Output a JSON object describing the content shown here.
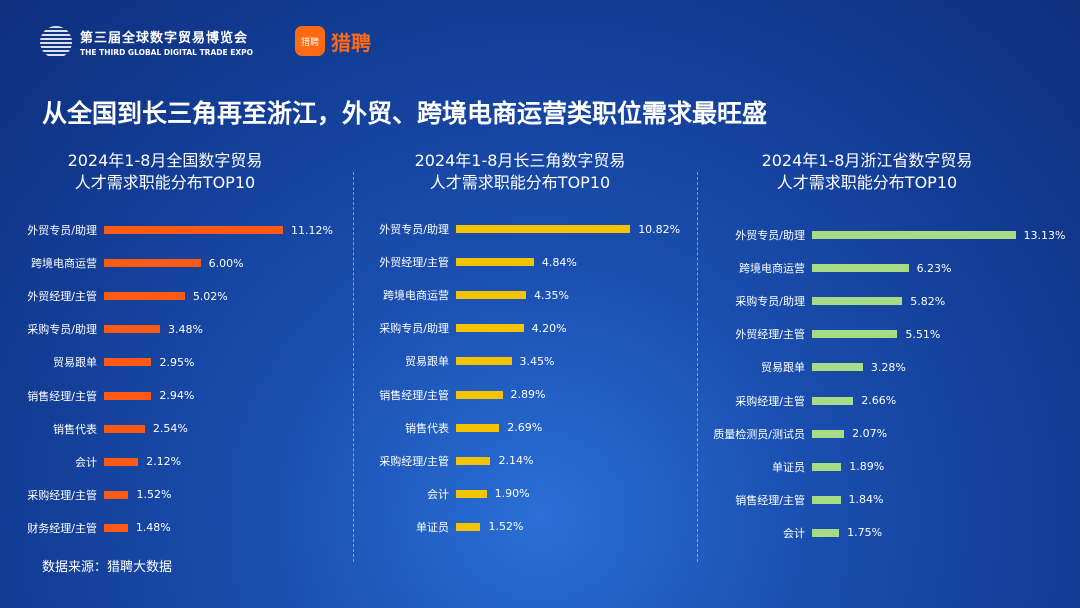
{
  "header": {
    "expo_cn": "第三届全球数字贸易博览会",
    "expo_en": "THE THIRD GLOBAL DIGITAL TRADE EXPO",
    "brand_icon": "猎聘",
    "brand": "猎聘"
  },
  "title": "从全国到长三角再至浙江，外贸、跨境电商运营类职位需求最旺盛",
  "source": "数据来源：猎聘大数据",
  "colors": {
    "national": "#ff5a14",
    "yrd": "#f5c400",
    "zhejiang": "#a6dc86"
  },
  "chart_data": [
    {
      "type": "bar",
      "title": "2024年1-8月全国数字贸易\n人才需求职能分布TOP10",
      "title_l1": "2024年1-8月全国数字贸易",
      "title_l2": "人才需求职能分布TOP10",
      "categories": [
        "外贸专员/助理",
        "跨境电商运营",
        "外贸经理/主管",
        "采购专员/助理",
        "贸易跟单",
        "销售经理/主管",
        "销售代表",
        "会计",
        "采购经理/主管",
        "财务经理/主管"
      ],
      "values": [
        11.12,
        6.0,
        5.02,
        3.48,
        2.95,
        2.94,
        2.54,
        2.12,
        1.52,
        1.48
      ],
      "labels": [
        "11.12%",
        "6.00%",
        "5.02%",
        "3.48%",
        "2.95%",
        "2.94%",
        "2.54%",
        "2.12%",
        "1.52%",
        "1.48%"
      ]
    },
    {
      "type": "bar",
      "title_l1": "2024年1-8月长三角数字贸易",
      "title_l2": "人才需求职能分布TOP10",
      "categories": [
        "外贸专员/助理",
        "外贸经理/主管",
        "跨境电商运营",
        "采购专员/助理",
        "贸易跟单",
        "销售经理/主管",
        "销售代表",
        "采购经理/主管",
        "会计",
        "单证员"
      ],
      "values": [
        10.82,
        4.84,
        4.35,
        4.2,
        3.45,
        2.89,
        2.69,
        2.14,
        1.9,
        1.52
      ],
      "labels": [
        "10.82%",
        "4.84%",
        "4.35%",
        "4.20%",
        "3.45%",
        "2.89%",
        "2.69%",
        "2.14%",
        "1.90%",
        "1.52%"
      ]
    },
    {
      "type": "bar",
      "title_l1": "2024年1-8月浙江省数字贸易",
      "title_l2": "人才需求职能分布TOP10",
      "categories": [
        "外贸专员/助理",
        "跨境电商运营",
        "采购专员/助理",
        "外贸经理/主管",
        "贸易跟单",
        "采购经理/主管",
        "质量检测员/测试员",
        "单证员",
        "销售经理/主管",
        "会计"
      ],
      "values": [
        13.13,
        6.23,
        5.82,
        5.51,
        3.28,
        2.66,
        2.07,
        1.89,
        1.84,
        1.75
      ],
      "labels": [
        "13.13%",
        "6.23%",
        "5.82%",
        "5.51%",
        "3.28%",
        "2.66%",
        "2.07%",
        "1.89%",
        "1.84%",
        "1.75%"
      ]
    }
  ]
}
